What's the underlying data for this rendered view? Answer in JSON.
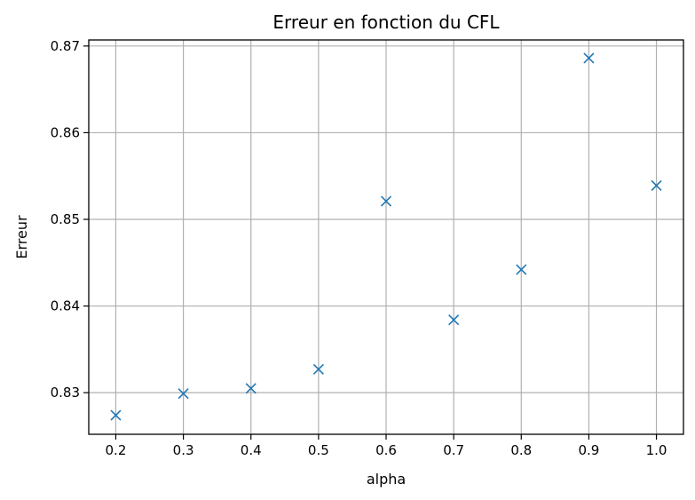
{
  "chart_data": {
    "type": "scatter",
    "title": "Erreur en fonction du CFL",
    "xlabel": "alpha",
    "ylabel": "Erreur",
    "marker": "x",
    "grid": true,
    "xlim": [
      0.16,
      1.04
    ],
    "ylim": [
      0.8252,
      0.8707
    ],
    "xticks": [
      0.2,
      0.3,
      0.4,
      0.5,
      0.6,
      0.7,
      0.8,
      0.9,
      1.0
    ],
    "xtick_labels": [
      "0.2",
      "0.3",
      "0.4",
      "0.5",
      "0.6",
      "0.7",
      "0.8",
      "0.9",
      "1.0"
    ],
    "yticks": [
      0.83,
      0.84,
      0.85,
      0.86,
      0.87
    ],
    "ytick_labels": [
      "0.83",
      "0.84",
      "0.85",
      "0.86",
      "0.87"
    ],
    "series": [
      {
        "color": "#1f77b4",
        "x": [
          0.2,
          0.3,
          0.4,
          0.5,
          0.6,
          0.7,
          0.8,
          0.9,
          1.0
        ],
        "y": [
          0.8274,
          0.8299,
          0.8305,
          0.8327,
          0.8521,
          0.8384,
          0.8442,
          0.8686,
          0.8539
        ]
      }
    ]
  }
}
